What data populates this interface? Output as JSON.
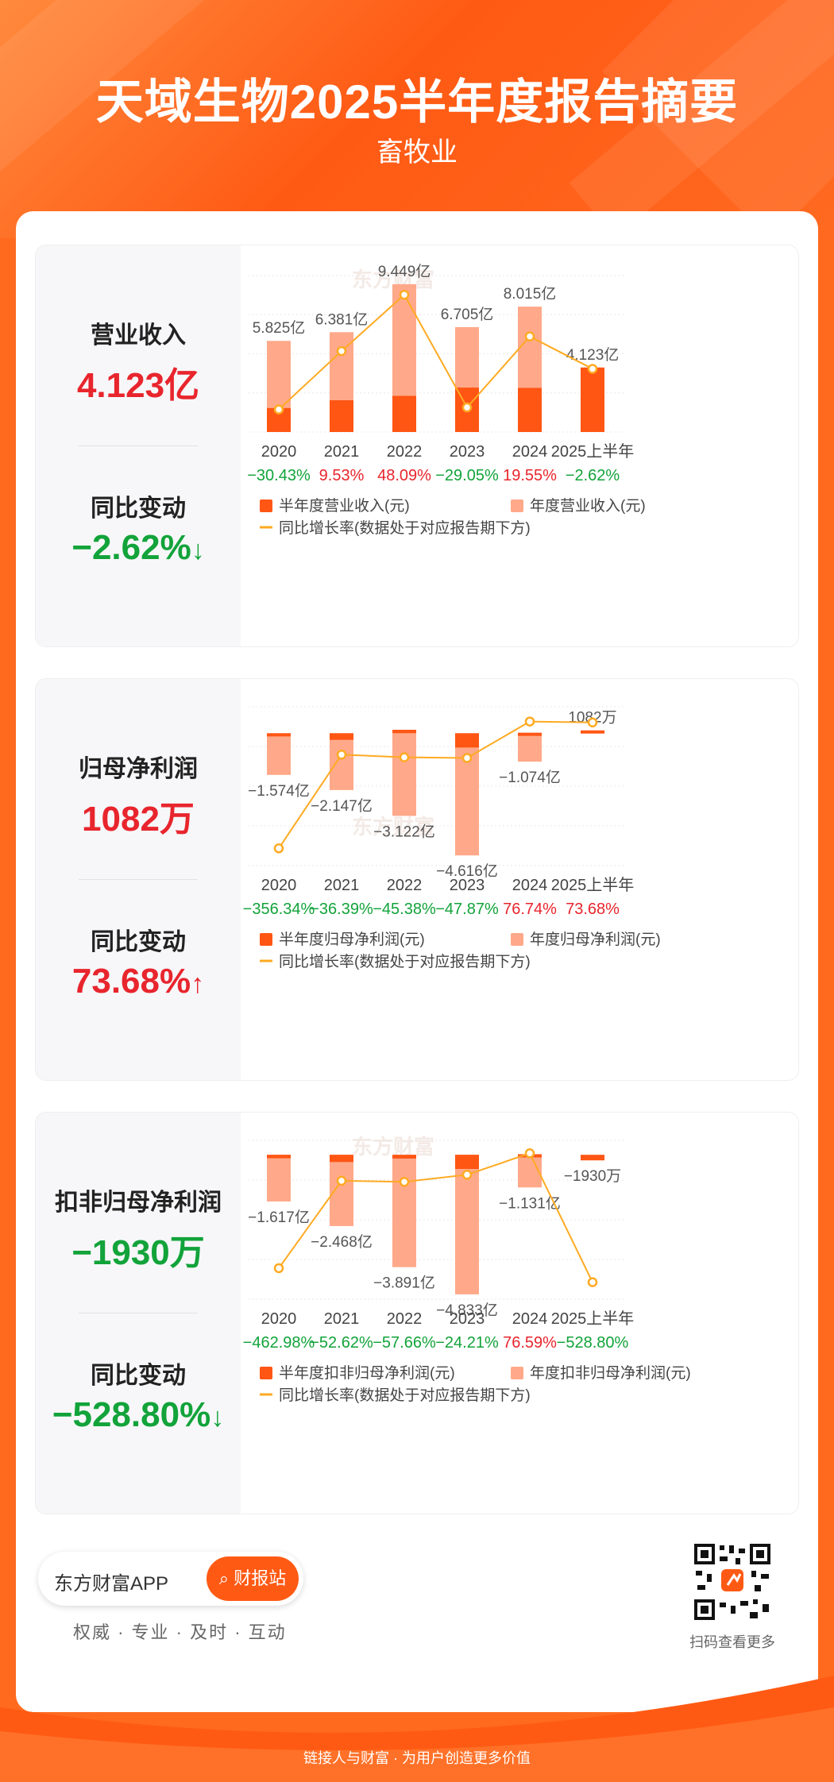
{
  "header": {
    "title": "天域生物2025半年度报告摘要",
    "subtitle": "畜牧业"
  },
  "colors": {
    "half_bar": "#ff5614",
    "annual_bar": "#ffa98a",
    "line": "#ffaa22",
    "red": "#e8252d",
    "green": "#12a33a"
  },
  "panels": [
    {
      "metric_label": "营业收入",
      "metric_value": "4.123亿",
      "metric_color": "red",
      "change_label": "同比变动",
      "change_value": "−2.62%",
      "change_color": "green",
      "arrow": "↓"
    },
    {
      "metric_label": "归母净利润",
      "metric_value": "1082万",
      "metric_color": "red",
      "change_label": "同比变动",
      "change_value": "73.68%",
      "change_color": "red",
      "arrow": "↑"
    },
    {
      "metric_label": "扣非归母净利润",
      "metric_value": "−1930万",
      "metric_color": "green",
      "change_label": "同比变动",
      "change_value": "−528.80%",
      "change_color": "green",
      "arrow": "↓"
    }
  ],
  "chart_data": [
    {
      "type": "bar",
      "categories": [
        "2020",
        "2021",
        "2022",
        "2023",
        "2024",
        "2025上半年"
      ],
      "series": [
        {
          "name": "半年度营业收入(元)",
          "values": [
            1.53,
            2.03,
            2.31,
            2.84,
            2.82,
            4.123
          ]
        },
        {
          "name": "年度营业收入(元)",
          "values": [
            5.825,
            6.381,
            9.449,
            6.705,
            8.015,
            null
          ]
        },
        {
          "name": "同比增长率(数据处于对应报告期下方)",
          "values": [
            -30.43,
            9.53,
            48.09,
            -29.05,
            19.55,
            -2.62
          ]
        }
      ],
      "bar_labels": [
        "5.825亿",
        "6.381亿",
        "9.449亿",
        "6.705亿",
        "8.015亿",
        "4.123亿"
      ],
      "growth_labels": [
        "−30.43%",
        "9.53%",
        "48.09%",
        "−29.05%",
        "19.55%",
        "−2.62%"
      ],
      "legend": {
        "half": "半年度营业收入(元)",
        "annual": "年度营业收入(元)",
        "line": "同比增长率(数据处于对应报告期下方)"
      }
    },
    {
      "type": "bar",
      "categories": [
        "2020",
        "2021",
        "2022",
        "2023",
        "2024",
        "2025上半年"
      ],
      "series": [
        {
          "name": "半年度归母净利润(元)",
          "values": [
            -0.12,
            -0.25,
            0.13,
            -0.54,
            0.02,
            0.1082
          ]
        },
        {
          "name": "年度归母净利润(元)",
          "values": [
            -1.574,
            -2.147,
            -3.122,
            -4.616,
            -1.074,
            null
          ]
        },
        {
          "name": "同比增长率(数据处于对应报告期下方)",
          "values": [
            -356.34,
            -36.39,
            -45.38,
            -47.87,
            76.74,
            73.68
          ]
        }
      ],
      "bar_labels": [
        "−1.574亿",
        "−2.147亿",
        "−3.122亿",
        "−4.616亿",
        "−1.074亿",
        "1082万"
      ],
      "growth_labels": [
        "−356.34%",
        "−36.39%",
        "−45.38%",
        "−47.87%",
        "76.74%",
        "73.68%"
      ],
      "legend": {
        "half": "半年度归母净利润(元)",
        "annual": "年度归母净利润(元)",
        "line": "同比增长率(数据处于对应报告期下方)"
      }
    },
    {
      "type": "bar",
      "categories": [
        "2020",
        "2021",
        "2022",
        "2023",
        "2024",
        "2025上半年"
      ],
      "series": [
        {
          "name": "半年度扣非归母净利润(元)",
          "values": [
            -0.12,
            -0.25,
            -0.13,
            -0.49,
            0.02,
            -0.193
          ]
        },
        {
          "name": "年度扣非归母净利润(元)",
          "values": [
            -1.617,
            -2.468,
            -3.891,
            -4.833,
            -1.131,
            null
          ]
        },
        {
          "name": "同比增长率(数据处于对应报告期下方)",
          "values": [
            -462.98,
            -52.62,
            -57.66,
            -24.21,
            76.59,
            -528.8
          ]
        }
      ],
      "bar_labels": [
        "−1.617亿",
        "−2.468亿",
        "−3.891亿",
        "−4.833亿",
        "−1.131亿",
        "−1930万"
      ],
      "growth_labels": [
        "−462.98%",
        "−52.62%",
        "−57.66%",
        "−24.21%",
        "76.59%",
        "−528.80%"
      ],
      "legend": {
        "half": "半年度扣非归母净利润(元)",
        "annual": "年度扣非归母净利润(元)",
        "line": "同比增长率(数据处于对应报告期下方)"
      }
    }
  ],
  "watermark": "东方财富",
  "footer": {
    "app_name": "东方财富APP",
    "button_label": "财报站",
    "slogan": "权威 · 专业 · 及时 · 互动",
    "qr_caption": "扫码查看更多",
    "tagline": "链接人与财富 · 为用户创造更多价值"
  }
}
